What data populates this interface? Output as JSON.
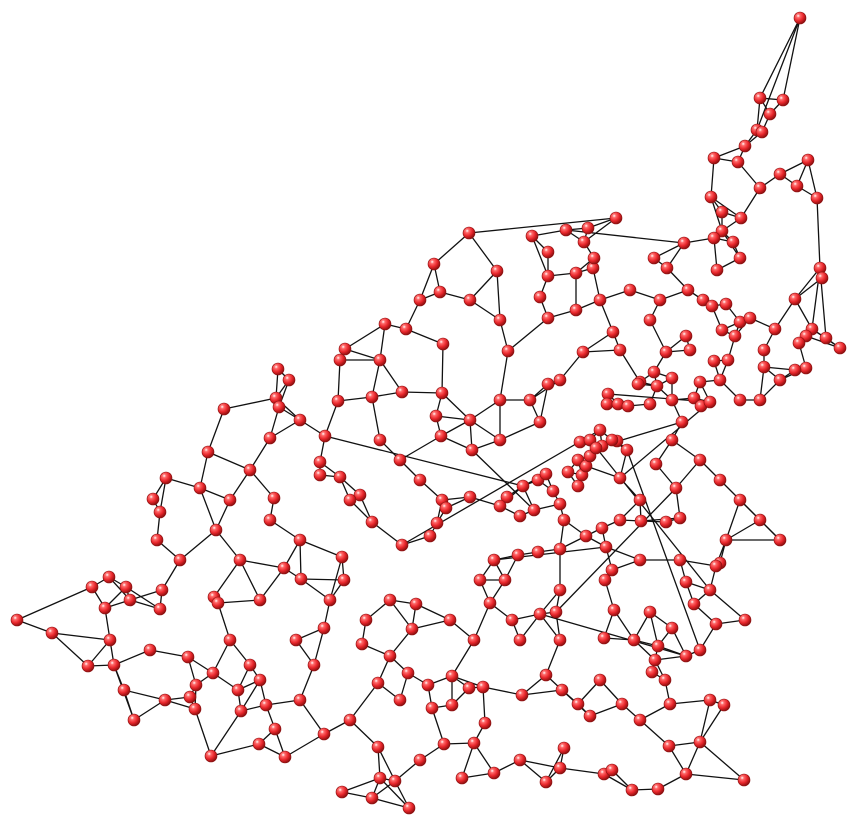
{
  "diagram": {
    "type": "network-graph",
    "title": "",
    "node_style": {
      "fill": "#e8262b",
      "shade": "#9a1214",
      "highlight": "#ffffff",
      "edge_color": "#111111"
    },
    "nodes_visible": 340,
    "edges_visible": 640,
    "has_text": false
  }
}
